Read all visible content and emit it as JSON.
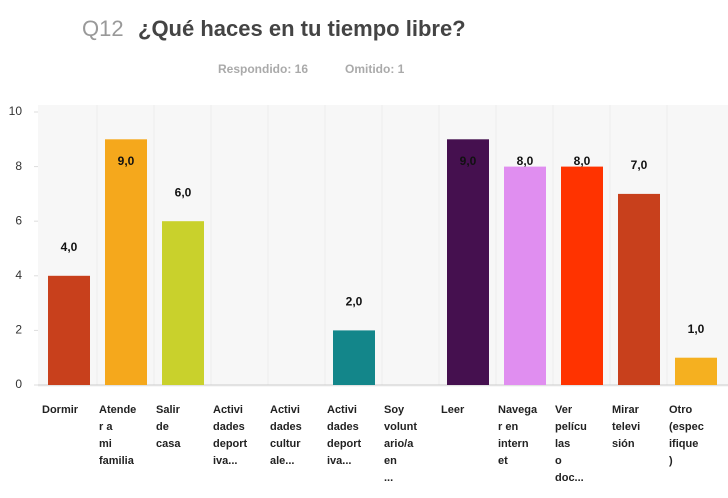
{
  "chart_data": {
    "type": "bar",
    "title_prefix": "Q12",
    "title": "¿Qué haces en tu tiempo libre?",
    "subtitle": [
      "Respondido: 16",
      "Omitido: 1"
    ],
    "categories": [
      [
        "Dormir"
      ],
      [
        "Atende",
        "r a",
        "mi",
        "familia"
      ],
      [
        "Salir",
        "de",
        "casa"
      ],
      [
        "Activi",
        "dades",
        "deport",
        "iva..."
      ],
      [
        "Activi",
        "dades",
        "cultur",
        "ale..."
      ],
      [
        "Activi",
        "dades",
        "deport",
        "iva..."
      ],
      [
        "Soy",
        "volunt",
        "ario/a",
        "en",
        "..."
      ],
      [
        "Leer"
      ],
      [
        "Navega",
        "r en",
        "intern",
        "et"
      ],
      [
        "Ver",
        "pelícu",
        "las",
        "o",
        "doc..."
      ],
      [
        "Mirar",
        "televi",
        "sión"
      ],
      [
        "Otro",
        "(espec",
        "ifique",
        ")"
      ]
    ],
    "values": [
      4,
      9,
      6,
      0,
      0,
      2,
      0,
      9,
      8,
      8,
      7,
      1
    ],
    "value_labels": [
      "4,0",
      "9,0",
      "6,0",
      null,
      null,
      "2,0",
      null,
      "9,0",
      "8,0",
      "8,0",
      "7,0",
      "1,0"
    ],
    "colors": [
      "#c8401c",
      "#f5a81c",
      "#c9d12c",
      null,
      null,
      "#13868a",
      null,
      "#45104f",
      "#e08ef0",
      "#ff3300",
      "#c8401c",
      "#f5b020"
    ],
    "ylim": [
      0,
      10
    ],
    "yticks": [
      0,
      2,
      4,
      6,
      8,
      10
    ]
  }
}
